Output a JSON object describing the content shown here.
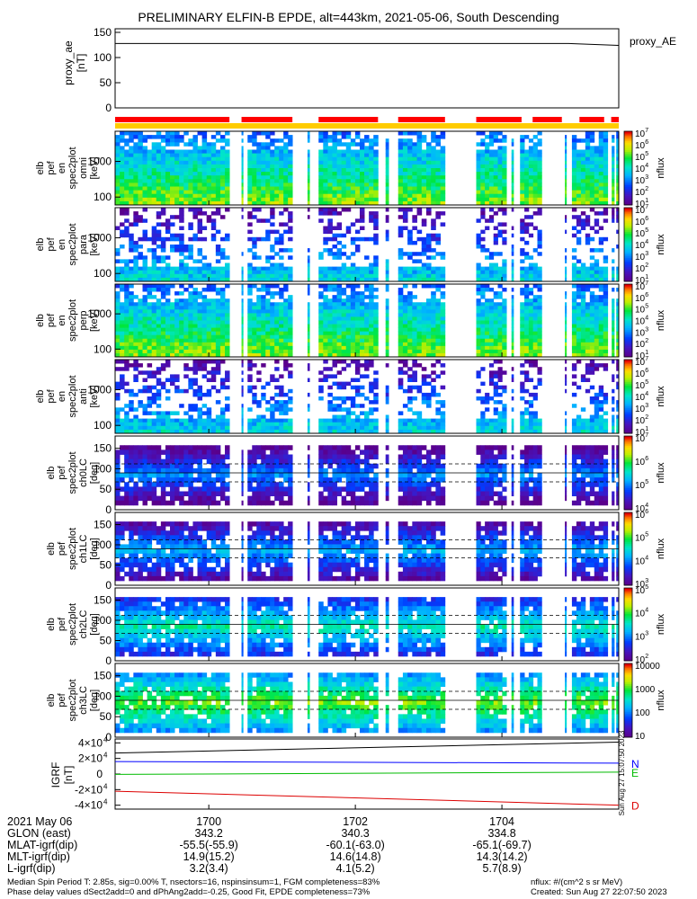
{
  "header": {
    "title": "PRELIMINARY ELFIN-B EPDE, alt=443km, 2021-05-06, South Descending"
  },
  "chart_data": [
    {
      "type": "line",
      "id": "proxy_ae",
      "ylabel_lines": [
        "proxy_ae",
        "[nT]"
      ],
      "legend": "proxy_AE",
      "ylim": [
        0,
        150
      ],
      "yticks": [
        0,
        50,
        100,
        150
      ],
      "series": [
        {
          "name": "proxy_AE",
          "color": "#000000",
          "x": [
            0,
            0.9,
            1.0
          ],
          "values": [
            128,
            128,
            124
          ]
        }
      ]
    },
    {
      "type": "bar",
      "id": "science-zone-bars",
      "background_color": "#ffcc00",
      "bar_color": "#ff0000",
      "segments": [
        [
          0.0,
          0.227
        ],
        [
          0.251,
          0.352
        ],
        [
          0.404,
          0.522
        ],
        [
          0.562,
          0.655
        ],
        [
          0.717,
          0.807
        ],
        [
          0.829,
          0.887
        ],
        [
          0.922,
          0.971
        ],
        [
          0.985,
          1.0
        ]
      ]
    },
    {
      "type": "heatmap",
      "id": "energy-omni-1",
      "ylabel_lines": [
        "elb",
        "pef",
        "en",
        "spec2plot",
        "omni",
        "[keV]"
      ],
      "yscale": "log",
      "ylim": [
        60,
        7000
      ],
      "yticks": [
        100,
        1000
      ],
      "colorbar": {
        "label": "nflux",
        "log": true,
        "range": [
          10,
          10000000
        ],
        "ticks": [
          "10",
          "10",
          "10",
          "10",
          "10",
          "10",
          "10"
        ],
        "exponents": [
          "1",
          "2",
          "3",
          "4",
          "5",
          "6",
          "7"
        ]
      },
      "blocks": [
        0,
        1,
        2,
        3,
        4,
        5,
        6,
        7
      ],
      "level": 0.55
    },
    {
      "type": "heatmap",
      "id": "energy-para-1",
      "ylabel_lines": [
        "elb",
        "pef",
        "en",
        "spec2plot",
        "para",
        "[keV]"
      ],
      "yscale": "log",
      "ylim": [
        60,
        7000
      ],
      "yticks": [
        100,
        1000
      ],
      "colorbar": {
        "label": "nflux",
        "log": true,
        "range": [
          10,
          10000000
        ],
        "ticks": [
          "10",
          "10",
          "10",
          "10",
          "10",
          "10",
          "10"
        ],
        "exponents": [
          "1",
          "2",
          "3",
          "4",
          "5",
          "6",
          "7"
        ]
      },
      "level": 0.3
    },
    {
      "type": "heatmap",
      "id": "energy-omni-2",
      "ylabel_lines": [
        "elb",
        "pef",
        "en",
        "spec2plot",
        "perp",
        "[keV]"
      ],
      "yscale": "log",
      "ylim": [
        60,
        7000
      ],
      "yticks": [
        100,
        1000
      ],
      "colorbar": {
        "label": "nflux",
        "log": true,
        "range": [
          10,
          10000000
        ],
        "ticks": [
          "10",
          "10",
          "10",
          "10",
          "10",
          "10",
          "10"
        ],
        "exponents": [
          "1",
          "2",
          "3",
          "4",
          "5",
          "6",
          "7"
        ]
      },
      "level": 0.55
    },
    {
      "type": "heatmap",
      "id": "energy-anti-1",
      "ylabel_lines": [
        "elb",
        "pef",
        "en",
        "spec2plot",
        "anti",
        "[keV]"
      ],
      "yscale": "log",
      "ylim": [
        60,
        7000
      ],
      "yticks": [
        100,
        1000
      ],
      "colorbar": {
        "label": "nflux",
        "log": true,
        "range": [
          10,
          10000000
        ],
        "ticks": [
          "10",
          "10",
          "10",
          "10",
          "10",
          "10",
          "10"
        ],
        "exponents": [
          "1",
          "2",
          "3",
          "4",
          "5",
          "6",
          "7"
        ]
      },
      "level": 0.3
    },
    {
      "type": "heatmap",
      "id": "pa-ch0",
      "ylabel_lines": [
        "elb",
        "pef",
        "spec2plot",
        "ch0LC",
        "[deg]"
      ],
      "ylim": [
        0,
        180
      ],
      "yticks": [
        0,
        50,
        100,
        150
      ],
      "colorbar": {
        "label": "nflux",
        "log": true,
        "range": [
          10000,
          10000000
        ],
        "ticks": [
          "10",
          "10",
          "10",
          "10"
        ],
        "exponents": [
          "4",
          "5",
          "6",
          "7"
        ]
      },
      "level": 0.35
    },
    {
      "type": "heatmap",
      "id": "pa-ch1",
      "ylabel_lines": [
        "elb",
        "pef",
        "spec2plot",
        "ch1LC",
        "[deg]"
      ],
      "ylim": [
        0,
        180
      ],
      "yticks": [
        0,
        50,
        100,
        150
      ],
      "colorbar": {
        "label": "nflux",
        "log": true,
        "range": [
          1000,
          1000000
        ],
        "ticks": [
          "10",
          "10",
          "10",
          "10"
        ],
        "exponents": [
          "3",
          "4",
          "5",
          "6"
        ]
      },
      "level": 0.4
    },
    {
      "type": "heatmap",
      "id": "pa-ch2",
      "ylabel_lines": [
        "elb",
        "pef",
        "spec2plot",
        "ch2LC",
        "[deg]"
      ],
      "ylim": [
        0,
        180
      ],
      "yticks": [
        0,
        50,
        100,
        150
      ],
      "colorbar": {
        "label": "nflux",
        "log": true,
        "range": [
          100,
          100000
        ],
        "ticks": [
          "10",
          "10",
          "10",
          "10"
        ],
        "exponents": [
          "2",
          "3",
          "4",
          "5"
        ]
      },
      "level": 0.55
    },
    {
      "type": "heatmap",
      "id": "pa-ch3",
      "ylabel_lines": [
        "elb",
        "pef",
        "spec2plot",
        "ch3LC",
        "[deg]"
      ],
      "ylim": [
        0,
        180
      ],
      "yticks": [
        0,
        50,
        100,
        150
      ],
      "colorbar": {
        "label": "nflux",
        "log": true,
        "range": [
          10,
          10000
        ],
        "ticks": [
          "10",
          "100",
          "1000",
          "10000"
        ],
        "exponents": [
          "",
          "",
          "",
          ""
        ]
      },
      "level": 0.7
    },
    {
      "type": "line",
      "id": "dB-igrf",
      "ylabel_lines": [
        "IGRF",
        "[nT]"
      ],
      "ylim": [
        -45000,
        45000
      ],
      "yticks": [
        "-4×10",
        "-2×10",
        "0",
        "2×10",
        "4×10"
      ],
      "yticks_exp": [
        "4",
        "4",
        "",
        "4",
        "4"
      ],
      "ytick_values": [
        -40000,
        -20000,
        0,
        20000,
        40000
      ],
      "series": [
        {
          "name": "N",
          "color": "#0000ff",
          "x": [
            0,
            1
          ],
          "values": [
            16000,
            14000
          ]
        },
        {
          "name": "E",
          "color": "#00bb00",
          "x": [
            0,
            1
          ],
          "values": [
            -500,
            2500
          ]
        },
        {
          "name": "D",
          "color": "#dd0000",
          "x": [
            0,
            1
          ],
          "values": [
            -22000,
            -40000
          ]
        },
        {
          "name": "",
          "color": "#000000",
          "x": [
            0,
            1
          ],
          "values": [
            27000,
            41000
          ]
        }
      ]
    }
  ],
  "time_axis": {
    "ticks": [
      {
        "label": "1700",
        "frac": 0.186
      },
      {
        "label": "1702",
        "frac": 0.477
      },
      {
        "label": "1704",
        "frac": 0.768
      }
    ]
  },
  "ephemeris": {
    "labels": [
      "2021 May 06",
      "GLON (east)",
      "MLAT-igrf(dip)",
      "MLT-igrf(dip)",
      "L-igrf(dip)"
    ],
    "columns": [
      [
        "1700",
        "343.2",
        "-55.5(-55.9)",
        "14.9(15.2)",
        "3.2(3.4)"
      ],
      [
        "1702",
        "340.3",
        "-60.1(-63.0)",
        "14.6(14.8)",
        "4.1(5.2)"
      ],
      [
        "1704",
        "334.8",
        "-65.1(-69.7)",
        "14.3(14.2)",
        "5.7(8.9)"
      ]
    ]
  },
  "footer": {
    "line1_left": "Median Spin Period T: 2.85s, sig=0.00% T, nsectors=16, nspinsinsum=1, FGM completeness=83%",
    "line2_left": "Phase delay values dSect2add=0 and dPhAng2add=-0.25, Good Fit, EPDE completeness=73%",
    "line1_right": "nflux: #/(cm^2 s sr MeV)",
    "line2_right": "Created: Sun Aug 27 22:07:50 2023",
    "stamp": "Sun Aug 27 15:07:50 2023"
  }
}
